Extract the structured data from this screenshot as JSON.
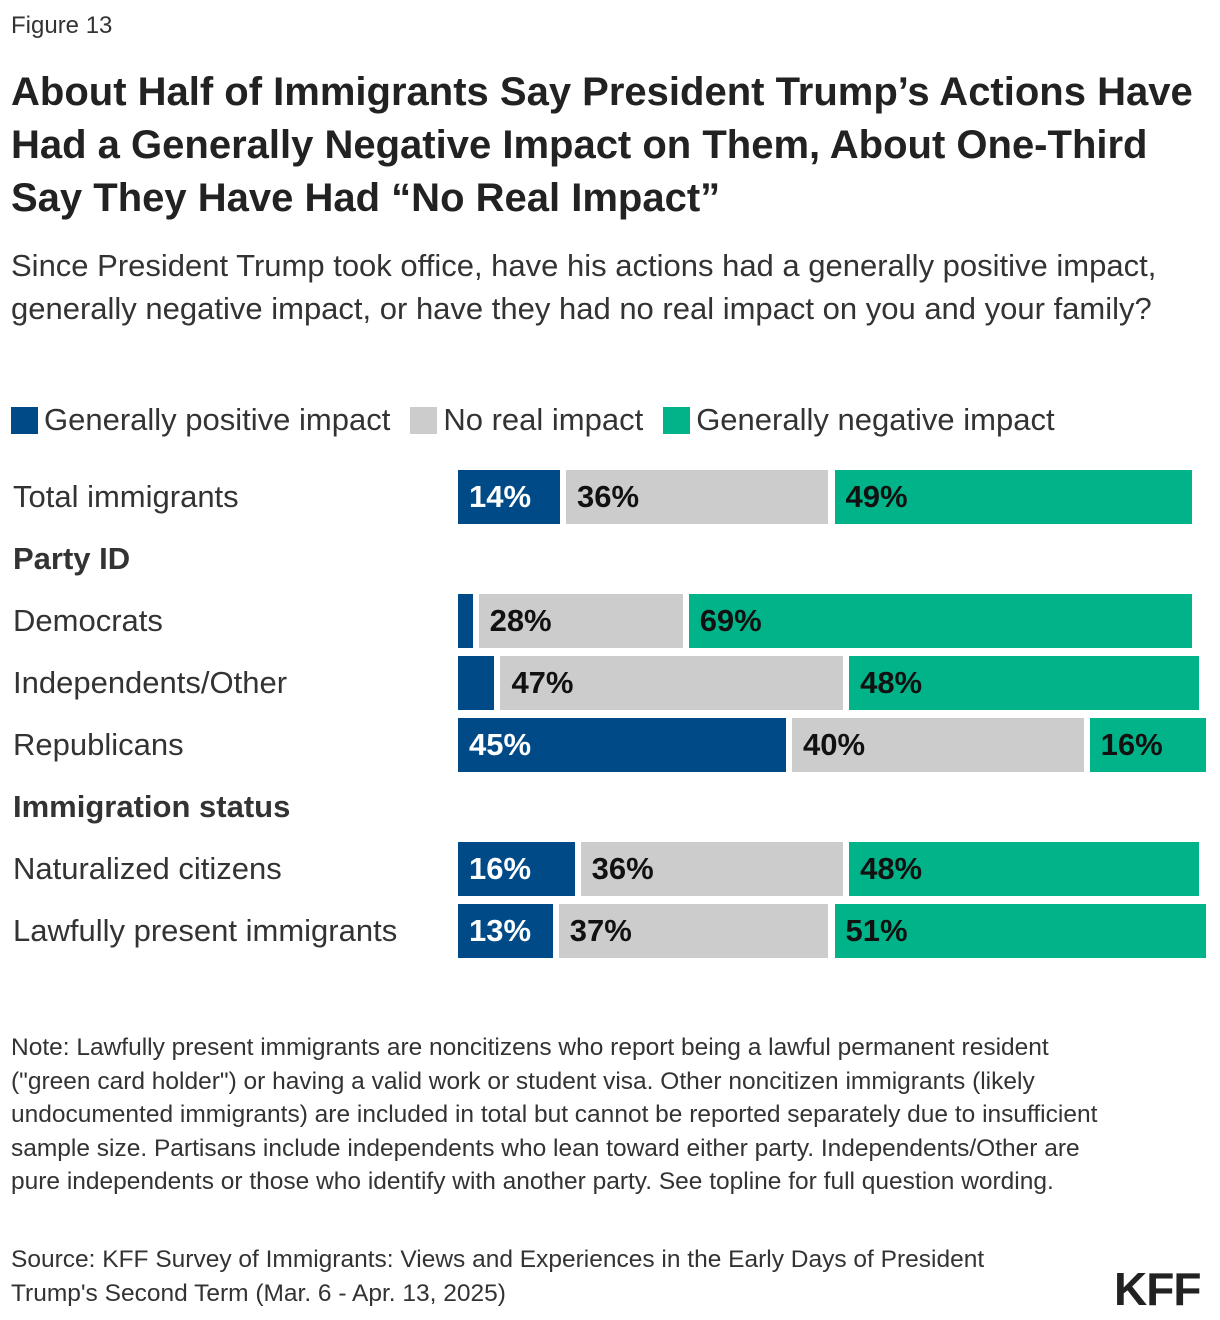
{
  "figure_label": "Figure 13",
  "title": "About Half of Immigrants Say President Trump’s Actions Have Had a Generally Negative Impact on Them, About One-Third Say They Have Had “No Real Impact”",
  "subtitle": "Since President Trump took office, have his actions had a generally positive impact, generally negative impact, or have they had no real impact on you and your family?",
  "note": "Note: Lawfully present immigrants are noncitizens who report being a lawful permanent resident (\"green card holder\") or having a valid work or student visa. Other noncitizen immigrants (likely undocumented immigrants) are included in total but cannot be reported separately due to insufficient sample size. Partisans include independents who lean toward either party. Independents/Other are pure independents or those who identify with another party. See topline for full question wording.",
  "source": "Source: KFF Survey of Immigrants: Views and Experiences in the Early Days of President Trump's Second Term (Mar. 6 - Apr. 13, 2025)",
  "logo": "KFF",
  "chart_data": {
    "type": "bar",
    "orientation": "horizontal",
    "stacked": true,
    "xlim": [
      0,
      100
    ],
    "grid": false,
    "legend_position": "top-left",
    "series": [
      {
        "name": "Generally positive impact",
        "color": "#004A87",
        "label_color": "#ffffff"
      },
      {
        "name": "No real impact",
        "color": "#CCCCCC",
        "label_color": "#111111"
      },
      {
        "name": "Generally negative impact",
        "color": "#00B388",
        "label_color": "#111111"
      }
    ],
    "rows": [
      {
        "type": "data",
        "label": "Total immigrants",
        "values": [
          14,
          36,
          49
        ],
        "labels": [
          "14%",
          "36%",
          "49%"
        ]
      },
      {
        "type": "header",
        "label": "Party ID"
      },
      {
        "type": "data",
        "label": "Democrats",
        "values": [
          2,
          28,
          69
        ],
        "labels": [
          "",
          "28%",
          "69%"
        ]
      },
      {
        "type": "data",
        "label": "Independents/Other",
        "values": [
          5,
          47,
          48
        ],
        "labels": [
          "",
          "47%",
          "48%"
        ]
      },
      {
        "type": "data",
        "label": "Republicans",
        "values": [
          45,
          40,
          16
        ],
        "labels": [
          "45%",
          "40%",
          "16%"
        ]
      },
      {
        "type": "header",
        "label": "Immigration status"
      },
      {
        "type": "data",
        "label": "Naturalized citizens",
        "values": [
          16,
          36,
          48
        ],
        "labels": [
          "16%",
          "36%",
          "48%"
        ]
      },
      {
        "type": "data",
        "label": "Lawfully present immigrants",
        "values": [
          13,
          37,
          51
        ],
        "labels": [
          "13%",
          "37%",
          "51%"
        ]
      }
    ]
  }
}
